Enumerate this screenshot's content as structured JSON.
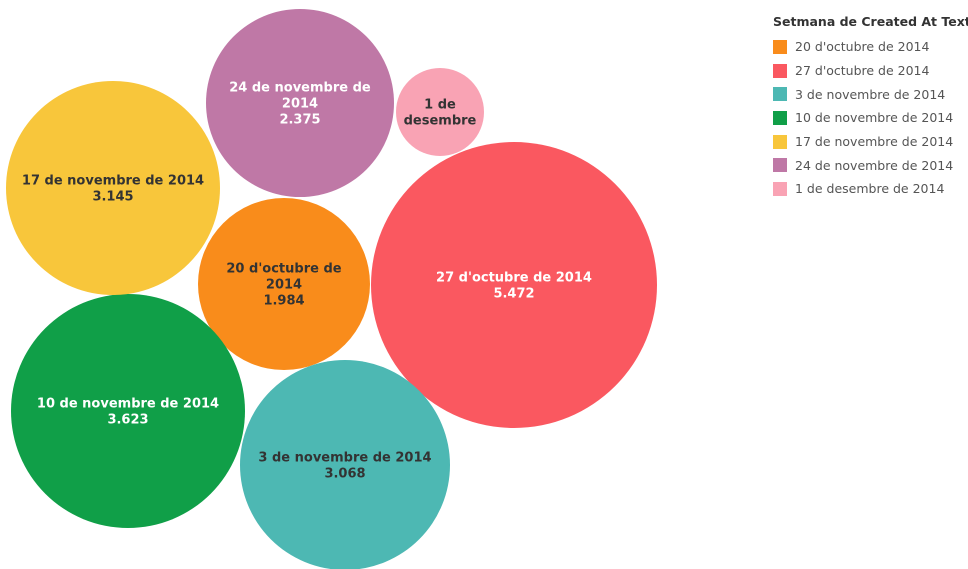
{
  "chart_data": {
    "type": "bubble",
    "legend": {
      "title": "Setmana de Created At Text",
      "position": "top-right"
    },
    "series": [
      {
        "name": "20 d'octubre de 2014",
        "label_lines": [
          "20 d'octubre de",
          "2014"
        ],
        "value": 1984,
        "value_label": "1.984",
        "color": "#F98C1B",
        "text_color": "#333333"
      },
      {
        "name": "27 d'octubre de 2014",
        "label_lines": [
          "27 d'octubre de 2014"
        ],
        "value": 5472,
        "value_label": "5.472",
        "color": "#FA5860",
        "text_color": "#ffffff"
      },
      {
        "name": "3 de novembre de 2014",
        "label_lines": [
          "3 de novembre de 2014"
        ],
        "value": 3068,
        "value_label": "3.068",
        "color": "#4DB8B3",
        "text_color": "#333333"
      },
      {
        "name": "10 de novembre de 2014",
        "label_lines": [
          "10 de novembre de 2014"
        ],
        "value": 3623,
        "value_label": "3.623",
        "color": "#109F48",
        "text_color": "#ffffff"
      },
      {
        "name": "17 de novembre de 2014",
        "label_lines": [
          "17 de novembre de 2014"
        ],
        "value": 3145,
        "value_label": "3.145",
        "color": "#F8C63B",
        "text_color": "#333333"
      },
      {
        "name": "24 de novembre de 2014",
        "label_lines": [
          "24 de novembre de",
          "2014"
        ],
        "value": 2375,
        "value_label": "2.375",
        "color": "#BF78A6",
        "text_color": "#ffffff"
      },
      {
        "name": "1 de desembre de 2014",
        "label_lines": [
          "1 de",
          "desembre"
        ],
        "value": null,
        "value_label": "",
        "color": "#F9A3B4",
        "text_color": "#333333"
      }
    ]
  }
}
